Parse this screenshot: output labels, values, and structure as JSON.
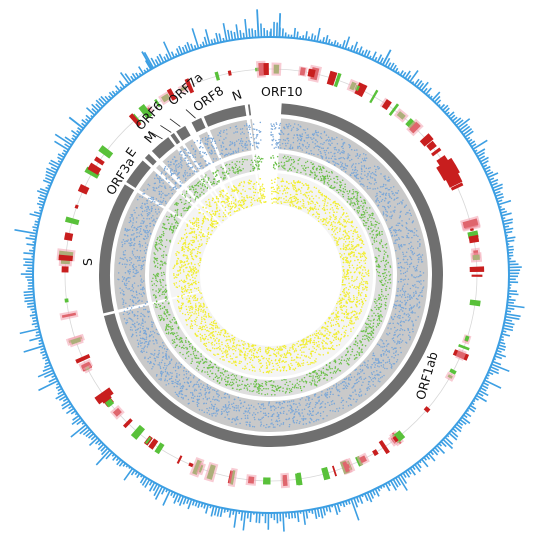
{
  "figure": {
    "gene_labels": [
      "ORF1ab",
      "S",
      "ORF3a",
      "E",
      "M",
      "ORF6",
      "ORF7a",
      "ORF8",
      "N",
      "ORF10"
    ]
  },
  "genome": {
    "genes": [
      {
        "name": "ORF1ab",
        "start": 266,
        "end": 21555
      },
      {
        "name": "S",
        "start": 21563,
        "end": 25384
      },
      {
        "name": "ORF3a",
        "start": 25393,
        "end": 26220
      },
      {
        "name": "E",
        "start": 26245,
        "end": 26472
      },
      {
        "name": "M",
        "start": 26523,
        "end": 27191
      },
      {
        "name": "ORF6",
        "start": 27202,
        "end": 27387
      },
      {
        "name": "ORF7a",
        "start": 27394,
        "end": 27759
      },
      {
        "name": "ORF8",
        "start": 27894,
        "end": 28259
      },
      {
        "name": "N",
        "start": 28274,
        "end": 29533
      },
      {
        "name": "ORF10",
        "start": 29558,
        "end": 29674
      }
    ],
    "length": 29903
  },
  "colors": {
    "gene_block": "#6f6f6f",
    "histogram": "#3d9fe3",
    "track_bg": "#c9c9c9",
    "track_blue_dots": "#7aa7d8",
    "track_green_dots": "#6cc04a",
    "track_yellow_dots": "#f1ee2f",
    "bar_red": "#c81e1e",
    "bar_green": "#59c13a",
    "bar_pink": "#f3a0ae"
  }
}
